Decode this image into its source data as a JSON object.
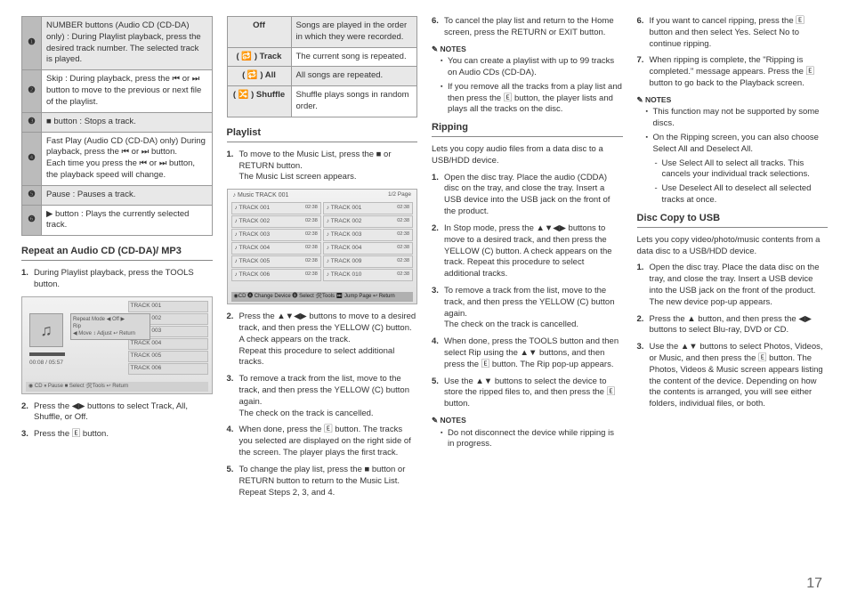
{
  "col1": {
    "rows": [
      {
        "n": "❶",
        "t": "NUMBER buttons (Audio CD (CD-DA) only) : During Playlist playback, press the desired track number. The selected track is played.",
        "shade": true
      },
      {
        "n": "❷",
        "t": "Skip : During playback, press the ⏮ or ⏭ button to move to the previous or next file of the playlist."
      },
      {
        "n": "❸",
        "t": "■ button : Stops a track.",
        "shade": true
      },
      {
        "n": "❹",
        "t": "Fast Play (Audio CD (CD-DA) only) During playback, press the ⏮ or ⏭ button.\nEach time you press the ⏮ or ⏭ button, the playback speed will change."
      },
      {
        "n": "❺",
        "t": "Pause : Pauses a track.",
        "shade": true
      },
      {
        "n": "❻",
        "t": "▶ button : Plays the currently selected track."
      }
    ],
    "h1": "Repeat an Audio CD (CD-DA)/ MP3",
    "s1": "During Playlist playback, press the TOOLS button.",
    "s2": "Press the ◀▶ buttons to select Track, All, Shuffle, or Off.",
    "s3": "Press the 🄴 button.",
    "illus": {
      "tracks": [
        "TRACK 001",
        "TRACK 002",
        "TRACK 003",
        "TRACK 004",
        "TRACK 005",
        "TRACK 006"
      ],
      "time": "00:08 / 05:57",
      "foot": "◉ CD        ⏸ Pause  ■ Select  🛠Tools  ↩ Return",
      "popup": "Repeat Mode   ◀ Off ▶\nRip\n◀ Move  ↕ Adjust  ↩ Return"
    }
  },
  "col2": {
    "modes": [
      {
        "m": "Off",
        "d": "Songs are played in the order in which they were recorded."
      },
      {
        "m": "( 🔂 ) Track",
        "d": "The current song is repeated."
      },
      {
        "m": "( 🔁 ) All",
        "d": "All songs are repeated."
      },
      {
        "m": "( 🔀 ) Shuffle",
        "d": "Shuffle plays songs in random order."
      }
    ],
    "h1": "Playlist",
    "s1": "To move to the Music List, press the ■ or RETURN button.\nThe Music List screen appears.",
    "s2": "Press the ▲▼◀▶ buttons to move to a desired track, and then press the YELLOW (C) button. A check appears on the track.\nRepeat this procedure to select additional tracks.",
    "s3": "To remove a track from the list, move to the track, and then press the YELLOW (C) button again.\nThe check on the track is cancelled.",
    "s4": "When done, press the 🄴 button. The tracks you selected are displayed on the right side of the screen. The player plays the first track.",
    "s5": "To change the play list, press the ■ button or RETURN button to return to the Music List. Repeat Steps 2, 3, and 4.",
    "illus": {
      "title": "♪ Music TRACK 001",
      "pg": "1/2 Page",
      "left": [
        "TRACK 001",
        "TRACK 002",
        "TRACK 003",
        "TRACK 004",
        "TRACK 005",
        "TRACK 006"
      ],
      "right": [
        "TRACK 001",
        "TRACK 002",
        "TRACK 003",
        "TRACK 004",
        "TRACK 009",
        "TRACK 010"
      ],
      "foot": "◉CD  🅐 Change Device 🅑 Select 🛠Tools ⏭ Jump Page ↩ Return"
    }
  },
  "col3": {
    "s6": "To cancel the play list and return to the Home screen, press the RETURN or EXIT button.",
    "notesA": [
      "You can create a playlist with up to 99 tracks on Audio CDs (CD-DA).",
      "If you remove all the tracks from a play list and then press the 🄴 button, the player lists and plays all the tracks on the disc."
    ],
    "h1": "Ripping",
    "intro": "Lets you copy audio files from a data disc to a USB/HDD device.",
    "s1": "Open the disc tray. Place the audio (CDDA) disc on the tray, and close the tray. Insert a USB device into the USB jack on the front of the product.",
    "s2": "In Stop mode, press the ▲▼◀▶ buttons to move to a desired track, and then press the YELLOW (C) button. A check appears on the track. Repeat this procedure to select additional tracks.",
    "s3": "To remove a track from the list, move to the track, and then press the YELLOW (C) button again.\nThe check on the track is cancelled.",
    "s4": "When done, press the TOOLS button and then select Rip using the ▲▼ buttons, and then press the 🄴 button. The Rip pop-up appears.",
    "s5": "Use the ▲▼ buttons to select the device to store the ripped files to, and then press the 🄴 button.",
    "notesB": [
      "Do not disconnect the device while ripping is in progress."
    ]
  },
  "col4": {
    "s6": "If you want to cancel ripping, press the 🄴 button and then select Yes. Select No to continue ripping.",
    "s7": "When ripping is complete, the \"Ripping is completed.\" message appears. Press the 🄴 button to go back to the Playback screen.",
    "notesA": [
      "This function may not be supported by some discs.",
      "On the Ripping screen, you can also choose Select All and Deselect All."
    ],
    "dash": [
      "Use Select All to select all tracks. This cancels your individual track selections.",
      "Use Deselect All to deselect all selected tracks at once."
    ],
    "h1": "Disc Copy to USB",
    "intro": "Lets you copy video/photo/music contents from a data disc to a USB/HDD device.",
    "s1": "Open the disc tray. Place the data disc on the tray, and close the tray. Insert a USB device into the USB jack on the front of the product. The new device pop-up appears.",
    "s2": "Press the ▲ button, and then press the ◀▶ buttons to select Blu-ray, DVD or CD.",
    "s3": "Use the ▲▼ buttons to select Photos, Videos, or Music, and then press the 🄴 button. The Photos, Videos & Music screen appears listing the content of the device. Depending on how the contents is arranged, you will see either folders, individual files, or both."
  },
  "pagenum": "17",
  "noteslabel": "✎ NOTES"
}
